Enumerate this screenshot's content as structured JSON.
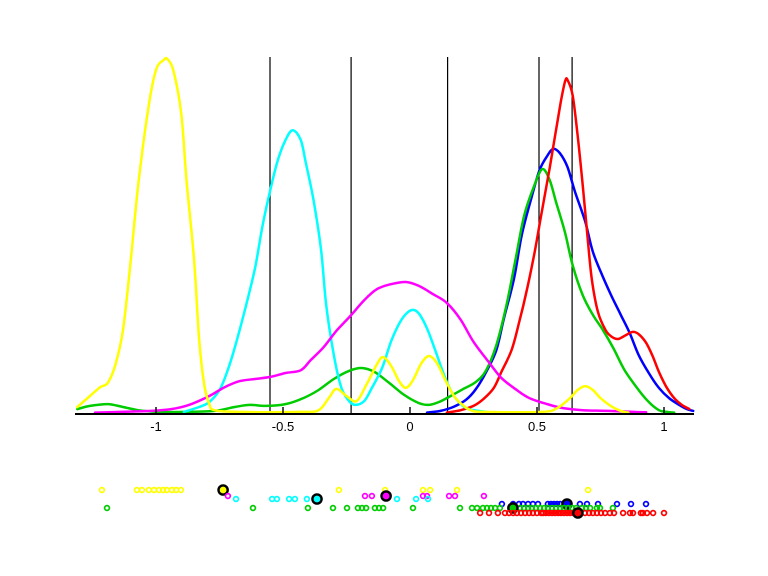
{
  "figure": {
    "background": "#ffffff",
    "title": "",
    "description": "MATLAB-style figure: six colored kernel-density curves over a shared x-axis, five black vertical reference lines, and six color-coded rug/scatter rows of sample points below the axis; one larger black-ringed marker per color."
  },
  "chart_data": {
    "type": "line",
    "title": "",
    "xlabel": "",
    "ylabel": "",
    "grid": false,
    "legend": null,
    "x_axis": {
      "range": [
        -1.32,
        1.12
      ],
      "ticks": [
        {
          "value": -1,
          "label": "-1"
        },
        {
          "value": -0.5,
          "label": "-0.5"
        },
        {
          "value": 0,
          "label": "0"
        },
        {
          "value": 0.5,
          "label": "0.5"
        },
        {
          "value": 1,
          "label": "1"
        }
      ]
    },
    "y_axis": {
      "visible": false,
      "units": "relative density (0-1, max of tallest peak)"
    },
    "reference_lines": [
      -0.551,
      -0.232,
      0.148,
      0.508,
      0.638
    ],
    "series": [
      {
        "name": "blue-kde",
        "color": "#0000ff",
        "points": [
          [
            0.067,
            0.001
          ],
          [
            0.12,
            0.006
          ],
          [
            0.17,
            0.017
          ],
          [
            0.22,
            0.037
          ],
          [
            0.26,
            0.068
          ],
          [
            0.3,
            0.116
          ],
          [
            0.34,
            0.178
          ],
          [
            0.37,
            0.268
          ],
          [
            0.41,
            0.381
          ],
          [
            0.44,
            0.503
          ],
          [
            0.48,
            0.613
          ],
          [
            0.51,
            0.686
          ],
          [
            0.54,
            0.726
          ],
          [
            0.564,
            0.746
          ],
          [
            0.59,
            0.734
          ],
          [
            0.62,
            0.695
          ],
          [
            0.65,
            0.624
          ],
          [
            0.69,
            0.54
          ],
          [
            0.72,
            0.455
          ],
          [
            0.76,
            0.384
          ],
          [
            0.795,
            0.328
          ],
          [
            0.83,
            0.277
          ],
          [
            0.865,
            0.226
          ],
          [
            0.9,
            0.164
          ],
          [
            0.94,
            0.113
          ],
          [
            0.98,
            0.071
          ],
          [
            1.02,
            0.042
          ],
          [
            1.06,
            0.023
          ],
          [
            1.09,
            0.011
          ],
          [
            1.115,
            0.006
          ]
        ]
      },
      {
        "name": "green-kde",
        "color": "#00cc00",
        "points": [
          [
            -1.31,
            0.011
          ],
          [
            -1.26,
            0.02
          ],
          [
            -1.19,
            0.025
          ],
          [
            -1.13,
            0.017
          ],
          [
            -1.07,
            0.008
          ],
          [
            -0.99,
            0.003
          ],
          [
            -0.89,
            0.003
          ],
          [
            -0.77,
            0.006
          ],
          [
            -0.69,
            0.017
          ],
          [
            -0.63,
            0.023
          ],
          [
            -0.57,
            0.02
          ],
          [
            -0.49,
            0.025
          ],
          [
            -0.42,
            0.042
          ],
          [
            -0.36,
            0.065
          ],
          [
            -0.3,
            0.096
          ],
          [
            -0.24,
            0.119
          ],
          [
            -0.19,
            0.127
          ],
          [
            -0.14,
            0.116
          ],
          [
            -0.082,
            0.085
          ],
          [
            -0.023,
            0.051
          ],
          [
            0.035,
            0.028
          ],
          [
            0.074,
            0.023
          ],
          [
            0.114,
            0.031
          ],
          [
            0.16,
            0.048
          ],
          [
            0.21,
            0.068
          ],
          [
            0.26,
            0.088
          ],
          [
            0.3,
            0.121
          ],
          [
            0.34,
            0.192
          ],
          [
            0.38,
            0.305
          ],
          [
            0.415,
            0.432
          ],
          [
            0.45,
            0.559
          ],
          [
            0.49,
            0.644
          ],
          [
            0.521,
            0.689
          ],
          [
            0.55,
            0.658
          ],
          [
            0.575,
            0.596
          ],
          [
            0.61,
            0.511
          ],
          [
            0.64,
            0.418
          ],
          [
            0.68,
            0.333
          ],
          [
            0.72,
            0.277
          ],
          [
            0.76,
            0.234
          ],
          [
            0.8,
            0.184
          ],
          [
            0.845,
            0.121
          ],
          [
            0.9,
            0.065
          ],
          [
            0.94,
            0.031
          ],
          [
            0.98,
            0.008
          ],
          [
            1.01,
            0.003
          ],
          [
            1.04,
            0.001
          ]
        ]
      },
      {
        "name": "red-kde",
        "color": "#ff0000",
        "points": [
          [
            0.145,
            0.001
          ],
          [
            0.2,
            0.008
          ],
          [
            0.25,
            0.02
          ],
          [
            0.29,
            0.04
          ],
          [
            0.33,
            0.071
          ],
          [
            0.36,
            0.116
          ],
          [
            0.4,
            0.178
          ],
          [
            0.43,
            0.257
          ],
          [
            0.46,
            0.347
          ],
          [
            0.49,
            0.452
          ],
          [
            0.52,
            0.573
          ],
          [
            0.55,
            0.692
          ],
          [
            0.575,
            0.799
          ],
          [
            0.595,
            0.884
          ],
          [
            0.611,
            0.938
          ],
          [
            0.62,
            0.941
          ],
          [
            0.64,
            0.898
          ],
          [
            0.66,
            0.785
          ],
          [
            0.68,
            0.644
          ],
          [
            0.7,
            0.489
          ],
          [
            0.716,
            0.376
          ],
          [
            0.74,
            0.285
          ],
          [
            0.77,
            0.234
          ],
          [
            0.795,
            0.215
          ],
          [
            0.82,
            0.209
          ],
          [
            0.85,
            0.22
          ],
          [
            0.877,
            0.229
          ],
          [
            0.9,
            0.223
          ],
          [
            0.93,
            0.198
          ],
          [
            0.955,
            0.161
          ],
          [
            0.98,
            0.116
          ],
          [
            1.01,
            0.073
          ],
          [
            1.04,
            0.042
          ],
          [
            1.07,
            0.023
          ],
          [
            1.1,
            0.011
          ]
        ]
      },
      {
        "name": "cyan-kde",
        "color": "#00ffff",
        "points": [
          [
            -0.89,
            0.003
          ],
          [
            -0.83,
            0.017
          ],
          [
            -0.79,
            0.031
          ],
          [
            -0.75,
            0.065
          ],
          [
            -0.72,
            0.116
          ],
          [
            -0.69,
            0.184
          ],
          [
            -0.65,
            0.291
          ],
          [
            -0.61,
            0.41
          ],
          [
            -0.58,
            0.531
          ],
          [
            -0.55,
            0.63
          ],
          [
            -0.52,
            0.715
          ],
          [
            -0.49,
            0.771
          ],
          [
            -0.462,
            0.799
          ],
          [
            -0.43,
            0.771
          ],
          [
            -0.41,
            0.706
          ],
          [
            -0.38,
            0.602
          ],
          [
            -0.35,
            0.46
          ],
          [
            -0.33,
            0.305
          ],
          [
            -0.3,
            0.164
          ],
          [
            -0.27,
            0.071
          ],
          [
            -0.24,
            0.034
          ],
          [
            -0.215,
            0.023
          ],
          [
            -0.18,
            0.034
          ],
          [
            -0.15,
            0.071
          ],
          [
            -0.11,
            0.127
          ],
          [
            -0.074,
            0.203
          ],
          [
            -0.039,
            0.257
          ],
          [
            -0.008,
            0.285
          ],
          [
            0.016,
            0.291
          ],
          [
            0.039,
            0.277
          ],
          [
            0.07,
            0.234
          ],
          [
            0.102,
            0.172
          ],
          [
            0.137,
            0.102
          ],
          [
            0.168,
            0.054
          ],
          [
            0.2,
            0.025
          ],
          [
            0.23,
            0.011
          ],
          [
            0.27,
            0.006
          ],
          [
            0.33,
            0.001
          ]
        ]
      },
      {
        "name": "magenta-kde",
        "color": "#ff00ff",
        "points": [
          [
            -1.24,
            0.001
          ],
          [
            -1.14,
            0.003
          ],
          [
            -1.02,
            0.006
          ],
          [
            -0.94,
            0.011
          ],
          [
            -0.87,
            0.023
          ],
          [
            -0.79,
            0.048
          ],
          [
            -0.73,
            0.073
          ],
          [
            -0.67,
            0.09
          ],
          [
            -0.61,
            0.096
          ],
          [
            -0.55,
            0.102
          ],
          [
            -0.49,
            0.113
          ],
          [
            -0.43,
            0.121
          ],
          [
            -0.39,
            0.15
          ],
          [
            -0.34,
            0.186
          ],
          [
            -0.29,
            0.232
          ],
          [
            -0.235,
            0.274
          ],
          [
            -0.18,
            0.319
          ],
          [
            -0.13,
            0.35
          ],
          [
            -0.074,
            0.364
          ],
          [
            -0.016,
            0.37
          ],
          [
            0.035,
            0.359
          ],
          [
            0.09,
            0.336
          ],
          [
            0.145,
            0.311
          ],
          [
            0.2,
            0.263
          ],
          [
            0.25,
            0.201
          ],
          [
            0.31,
            0.144
          ],
          [
            0.36,
            0.099
          ],
          [
            0.42,
            0.065
          ],
          [
            0.47,
            0.042
          ],
          [
            0.54,
            0.025
          ],
          [
            0.6,
            0.014
          ],
          [
            0.68,
            0.008
          ],
          [
            0.78,
            0.006
          ],
          [
            0.88,
            0.003
          ],
          [
            0.93,
            0.002
          ]
        ]
      },
      {
        "name": "yellow-kde",
        "color": "#ffff00",
        "points": [
          [
            -1.31,
            0.017
          ],
          [
            -1.26,
            0.048
          ],
          [
            -1.22,
            0.073
          ],
          [
            -1.19,
            0.085
          ],
          [
            -1.16,
            0.136
          ],
          [
            -1.13,
            0.234
          ],
          [
            -1.1,
            0.427
          ],
          [
            -1.07,
            0.644
          ],
          [
            -1.03,
            0.862
          ],
          [
            -1.0,
            0.969
          ],
          [
            -0.97,
            0.997
          ],
          [
            -0.955,
            1.0
          ],
          [
            -0.93,
            0.963
          ],
          [
            -0.9,
            0.842
          ],
          [
            -0.88,
            0.658
          ],
          [
            -0.85,
            0.432
          ],
          [
            -0.83,
            0.206
          ],
          [
            -0.81,
            0.079
          ],
          [
            -0.79,
            0.025
          ],
          [
            -0.77,
            0.008
          ],
          [
            -0.67,
            0.003
          ],
          [
            -0.43,
            0.003
          ],
          [
            -0.36,
            0.008
          ],
          [
            -0.32,
            0.042
          ],
          [
            -0.29,
            0.068
          ],
          [
            -0.25,
            0.048
          ],
          [
            -0.21,
            0.034
          ],
          [
            -0.17,
            0.082
          ],
          [
            -0.13,
            0.138
          ],
          [
            -0.106,
            0.158
          ],
          [
            -0.074,
            0.133
          ],
          [
            -0.043,
            0.09
          ],
          [
            -0.016,
            0.071
          ],
          [
            0.012,
            0.093
          ],
          [
            0.043,
            0.138
          ],
          [
            0.074,
            0.161
          ],
          [
            0.106,
            0.141
          ],
          [
            0.141,
            0.09
          ],
          [
            0.176,
            0.045
          ],
          [
            0.207,
            0.023
          ],
          [
            0.239,
            0.008
          ],
          [
            0.29,
            0.003
          ],
          [
            0.52,
            0.003
          ],
          [
            0.58,
            0.014
          ],
          [
            0.63,
            0.042
          ],
          [
            0.66,
            0.065
          ],
          [
            0.69,
            0.076
          ],
          [
            0.72,
            0.065
          ],
          [
            0.75,
            0.042
          ],
          [
            0.79,
            0.02
          ],
          [
            0.83,
            0.006
          ],
          [
            0.86,
            0.001
          ]
        ]
      }
    ],
    "rug": [
      {
        "name": "yellow-points",
        "color": "#ffff00",
        "row_y": 490,
        "highlight_x": -0.736,
        "x": [
          -1.213,
          -1.075,
          -1.055,
          -1.028,
          -1.008,
          -0.988,
          -0.972,
          -0.957,
          -0.937,
          -0.921,
          -0.902,
          -0.28,
          -0.098,
          0.051,
          0.079,
          0.185,
          0.701
        ]
      },
      {
        "name": "magenta-points",
        "color": "#ff00ff",
        "row_y": 496,
        "highlight_x": -0.094,
        "x": [
          -0.717,
          -0.177,
          -0.15,
          0.051,
          0.067,
          0.154,
          0.177,
          0.291
        ]
      },
      {
        "name": "cyan-points",
        "color": "#00ffff",
        "row_y": 499,
        "highlight_x": -0.366,
        "x": [
          -0.685,
          -0.543,
          -0.524,
          -0.476,
          -0.453,
          -0.406,
          -0.051,
          0.024,
          0.071
        ]
      },
      {
        "name": "blue-points",
        "color": "#0000ff",
        "row_y": 504,
        "highlight_x": 0.618,
        "x": [
          0.362,
          0.406,
          0.429,
          0.445,
          0.465,
          0.484,
          0.504,
          0.543,
          0.555,
          0.567,
          0.579,
          0.591,
          0.669,
          0.697,
          0.74,
          0.815,
          0.87,
          0.929
        ]
      },
      {
        "name": "green-points",
        "color": "#00cc00",
        "row_y": 508,
        "highlight_x": 0.405,
        "x": [
          -1.193,
          -0.618,
          -0.402,
          -0.303,
          -0.248,
          -0.205,
          -0.189,
          -0.173,
          -0.138,
          -0.122,
          -0.106,
          0.012,
          0.197,
          0.244,
          0.264,
          0.287,
          0.303,
          0.319,
          0.335,
          0.354,
          0.433,
          0.449,
          0.465,
          0.48,
          0.496,
          0.512,
          0.528,
          0.543,
          0.559,
          0.575,
          0.591,
          0.606,
          0.622,
          0.638,
          0.654,
          0.677,
          0.693,
          0.709,
          0.736,
          0.748,
          0.799
        ]
      },
      {
        "name": "red-points",
        "color": "#ff0000",
        "row_y": 513,
        "highlight_x": 0.661,
        "x": [
          0.276,
          0.311,
          0.346,
          0.374,
          0.39,
          0.406,
          0.421,
          0.437,
          0.453,
          0.469,
          0.484,
          0.5,
          0.516,
          0.524,
          0.535,
          0.547,
          0.559,
          0.571,
          0.583,
          0.594,
          0.606,
          0.618,
          0.63,
          0.642,
          0.689,
          0.705,
          0.72,
          0.736,
          0.752,
          0.768,
          0.787,
          0.803,
          0.839,
          0.866,
          0.878,
          0.909,
          0.917,
          0.933,
          0.957,
          1.0
        ]
      }
    ],
    "styles": {
      "axis_color": "#000000",
      "reference_line_color": "#000000",
      "curve_width": 2.5,
      "marker_radius": 2.4,
      "highlight_radius": 4.6
    }
  }
}
